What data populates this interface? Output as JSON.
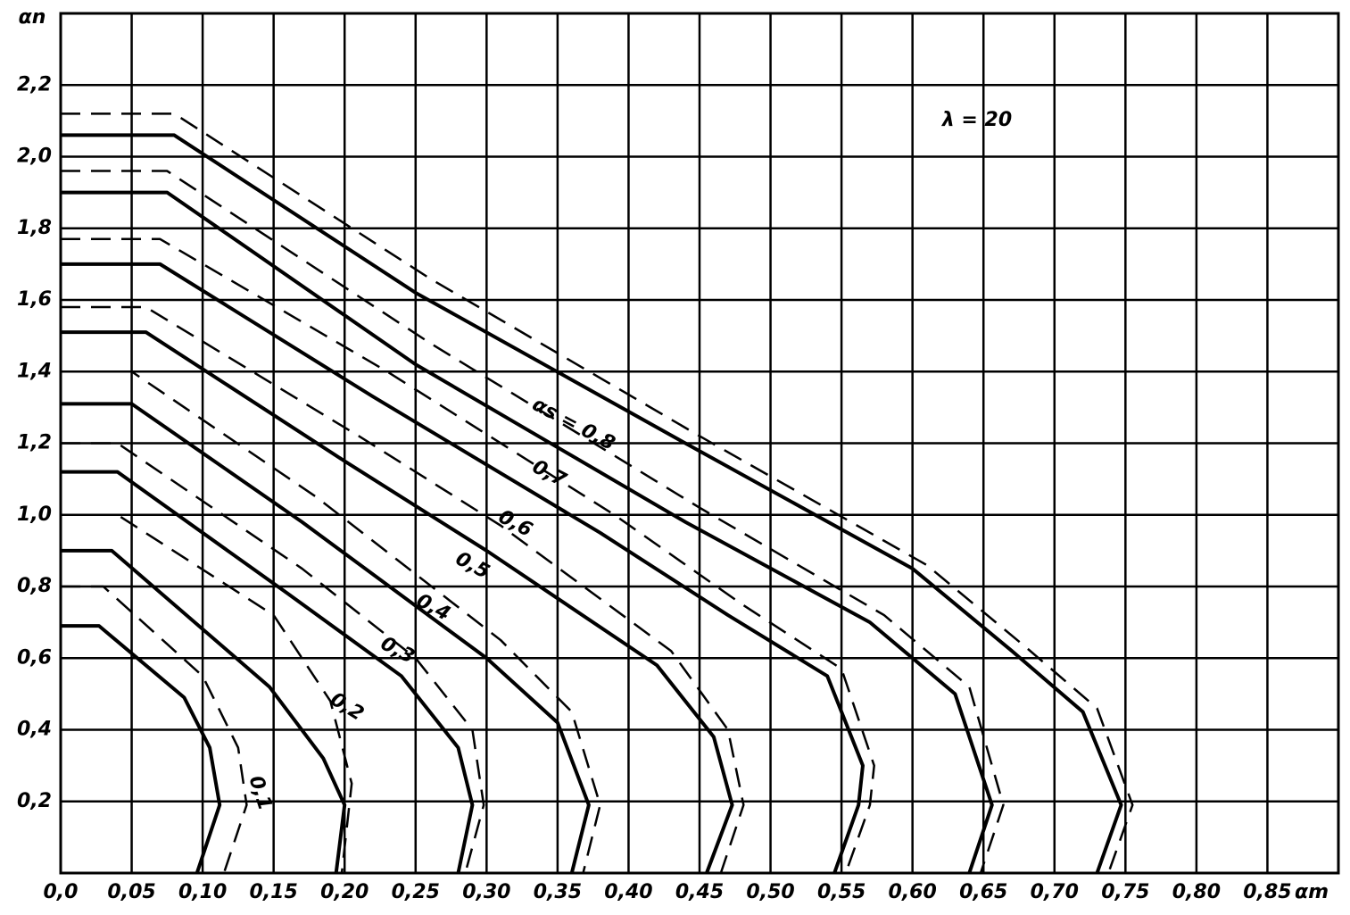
{
  "chart_data": {
    "type": "line",
    "annotation": "λ = 20",
    "x_label": "αm",
    "y_label": "αn",
    "xlim": [
      0,
      0.9
    ],
    "ylim": [
      0,
      2.4
    ],
    "xticks": [
      {
        "value": 0,
        "label": "0,0"
      },
      {
        "value": 0.05,
        "label": "0,05"
      },
      {
        "value": 0.1,
        "label": "0,10"
      },
      {
        "value": 0.15,
        "label": "0,15"
      },
      {
        "value": 0.2,
        "label": "0,20"
      },
      {
        "value": 0.25,
        "label": "0,25"
      },
      {
        "value": 0.3,
        "label": "0,30"
      },
      {
        "value": 0.35,
        "label": "0,35"
      },
      {
        "value": 0.4,
        "label": "0,40"
      },
      {
        "value": 0.45,
        "label": "0,45"
      },
      {
        "value": 0.5,
        "label": "0,50"
      },
      {
        "value": 0.55,
        "label": "0,55"
      },
      {
        "value": 0.6,
        "label": "0,60"
      },
      {
        "value": 0.65,
        "label": "0,65"
      },
      {
        "value": 0.7,
        "label": "0,70"
      },
      {
        "value": 0.75,
        "label": "0,75"
      },
      {
        "value": 0.8,
        "label": "0,80"
      },
      {
        "value": 0.85,
        "label": "0,85"
      }
    ],
    "yticks": [
      {
        "value": 0.2,
        "label": "0,2"
      },
      {
        "value": 0.4,
        "label": "0,4"
      },
      {
        "value": 0.6,
        "label": "0,6"
      },
      {
        "value": 0.8,
        "label": "0,8"
      },
      {
        "value": 1.0,
        "label": "1,0"
      },
      {
        "value": 1.2,
        "label": "1,2"
      },
      {
        "value": 1.4,
        "label": "1,4"
      },
      {
        "value": 1.6,
        "label": "1,6"
      },
      {
        "value": 1.8,
        "label": "1,8"
      },
      {
        "value": 2.0,
        "label": "2,0"
      },
      {
        "value": 2.2,
        "label": "2,2"
      }
    ],
    "grid": true,
    "color": "#000000",
    "series": [
      {
        "name": "0,1",
        "style": "solid",
        "x": [
          0,
          0.027,
          0.087,
          0.105,
          0.112,
          0.096
        ],
        "values": [
          0.69,
          0.69,
          0.49,
          0.35,
          0.19,
          0
        ]
      },
      {
        "name": "0,2",
        "style": "solid",
        "x": [
          0,
          0.036,
          0.147,
          0.185,
          0.2,
          0.194
        ],
        "values": [
          0.9,
          0.9,
          0.52,
          0.32,
          0.19,
          0
        ]
      },
      {
        "name": "0,3",
        "style": "solid",
        "x": [
          0,
          0.04,
          0.16,
          0.24,
          0.28,
          0.29,
          0.28
        ],
        "values": [
          1.12,
          1.12,
          0.78,
          0.55,
          0.35,
          0.19,
          0
        ]
      },
      {
        "name": "0,4",
        "style": "solid",
        "x": [
          0,
          0.05,
          0.17,
          0.3,
          0.35,
          0.372,
          0.36
        ],
        "values": [
          1.31,
          1.31,
          0.98,
          0.6,
          0.42,
          0.19,
          0
        ]
      },
      {
        "name": "0,5",
        "style": "solid",
        "x": [
          0,
          0.06,
          0.2,
          0.3,
          0.42,
          0.46,
          0.473,
          0.455
        ],
        "values": [
          1.51,
          1.51,
          1.15,
          0.9,
          0.58,
          0.38,
          0.19,
          0
        ]
      },
      {
        "name": "0,6",
        "style": "solid",
        "x": [
          0,
          0.07,
          0.22,
          0.38,
          0.47,
          0.54,
          0.565,
          0.562,
          0.545
        ],
        "values": [
          1.7,
          1.7,
          1.33,
          0.95,
          0.72,
          0.55,
          0.3,
          0.19,
          0
        ]
      },
      {
        "name": "0,7",
        "style": "solid",
        "x": [
          0,
          0.075,
          0.25,
          0.44,
          0.57,
          0.63,
          0.656,
          0.64
        ],
        "values": [
          1.9,
          1.9,
          1.42,
          0.98,
          0.7,
          0.5,
          0.19,
          0
        ]
      },
      {
        "name": "αs = 0,8",
        "style": "solid",
        "x": [
          0,
          0.08,
          0.25,
          0.44,
          0.6,
          0.67,
          0.72,
          0.747,
          0.73
        ],
        "values": [
          2.06,
          2.06,
          1.62,
          1.2,
          0.85,
          0.62,
          0.45,
          0.19,
          0
        ]
      },
      {
        "style": "dashed",
        "x": [
          0,
          0.03,
          0.1,
          0.125,
          0.131,
          0.115
        ],
        "values": [
          0.8,
          0.8,
          0.55,
          0.35,
          0.19,
          0
        ]
      },
      {
        "style": "dashed",
        "x": [
          0,
          0.04,
          0.15,
          0.19,
          0.205,
          0.198
        ],
        "values": [
          1.0,
          1.0,
          0.72,
          0.48,
          0.25,
          0
        ]
      },
      {
        "style": "dashed",
        "x": [
          0,
          0.04,
          0.17,
          0.25,
          0.29,
          0.298,
          0.285
        ],
        "values": [
          1.2,
          1.2,
          0.85,
          0.6,
          0.4,
          0.19,
          0
        ]
      },
      {
        "style": "dashed",
        "x": [
          0,
          0.05,
          0.18,
          0.31,
          0.36,
          0.38,
          0.368
        ],
        "values": [
          1.4,
          1.4,
          1.05,
          0.65,
          0.45,
          0.19,
          0
        ]
      },
      {
        "style": "dashed",
        "x": [
          0,
          0.06,
          0.21,
          0.31,
          0.43,
          0.47,
          0.481,
          0.465
        ],
        "values": [
          1.58,
          1.58,
          1.22,
          0.97,
          0.62,
          0.4,
          0.19,
          0
        ]
      },
      {
        "style": "dashed",
        "x": [
          0,
          0.07,
          0.23,
          0.39,
          0.48,
          0.55,
          0.573,
          0.57,
          0.553
        ],
        "values": [
          1.77,
          1.77,
          1.4,
          1.0,
          0.75,
          0.57,
          0.3,
          0.19,
          0
        ]
      },
      {
        "style": "dashed",
        "x": [
          0,
          0.075,
          0.26,
          0.45,
          0.58,
          0.64,
          0.664,
          0.648
        ],
        "values": [
          1.96,
          1.96,
          1.48,
          1.02,
          0.72,
          0.52,
          0.19,
          0
        ]
      },
      {
        "style": "dashed",
        "x": [
          0,
          0.08,
          0.26,
          0.45,
          0.61,
          0.68,
          0.73,
          0.755,
          0.738
        ],
        "values": [
          2.12,
          2.12,
          1.66,
          1.22,
          0.86,
          0.63,
          0.46,
          0.19,
          0
        ]
      }
    ]
  }
}
